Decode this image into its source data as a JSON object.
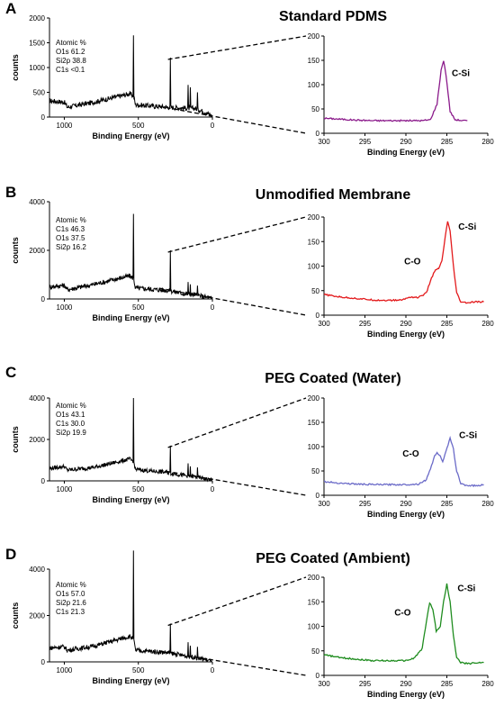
{
  "chart_data": [
    {
      "panel": "A",
      "title": "Standard PDMS",
      "type": "line",
      "survey": {
        "xlabel": "Binding Energy (eV)",
        "ylabel": "counts",
        "xlim": [
          1100,
          0
        ],
        "ylim": [
          0,
          2000
        ],
        "xticks": [
          1000,
          500,
          0
        ],
        "yticks": [
          0,
          500,
          1000,
          1500,
          2000
        ],
        "annotation": [
          "Atomic %",
          "O1s 61.2",
          "Si2p 38.8",
          "C1s <0.1"
        ],
        "baseline": [
          [
            1100,
            330
          ],
          [
            1000,
            300
          ],
          [
            980,
            200
          ],
          [
            800,
            300
          ],
          [
            560,
            470
          ],
          [
            532,
            430
          ],
          [
            520,
            250
          ],
          [
            300,
            200
          ],
          [
            180,
            180
          ],
          [
            120,
            180
          ],
          [
            50,
            100
          ],
          [
            0,
            20
          ]
        ],
        "peaks": [
          [
            532,
            1650
          ],
          [
            285,
            1200
          ],
          [
            165,
            650
          ],
          [
            150,
            600
          ],
          [
            102,
            500
          ]
        ]
      },
      "inset": {
        "xlabel": "Binding Energy (eV)",
        "xlim": [
          300,
          280
        ],
        "ylim": [
          0,
          200
        ],
        "xticks": [
          300,
          295,
          290,
          285,
          280
        ],
        "yticks": [
          0,
          50,
          100,
          150,
          200
        ],
        "color": "#8B1A8B",
        "points": [
          [
            300,
            31
          ],
          [
            298,
            29
          ],
          [
            296,
            27
          ],
          [
            294,
            26
          ],
          [
            292,
            26
          ],
          [
            290,
            26
          ],
          [
            288,
            26
          ],
          [
            287,
            28
          ],
          [
            286.2,
            60
          ],
          [
            285.7,
            130
          ],
          [
            285.4,
            150
          ],
          [
            285.1,
            120
          ],
          [
            284.6,
            45
          ],
          [
            284.0,
            28
          ],
          [
            283,
            26
          ],
          [
            282.5,
            26
          ]
        ],
        "peak_labels": [
          {
            "text": "C-Si",
            "x": 283.3,
            "y": 118
          }
        ]
      }
    },
    {
      "panel": "B",
      "title": "Unmodified Membrane",
      "type": "line",
      "survey": {
        "xlabel": "Binding Energy (eV)",
        "ylabel": "counts",
        "xlim": [
          1100,
          0
        ],
        "ylim": [
          0,
          4000
        ],
        "xticks": [
          1000,
          500,
          0
        ],
        "yticks": [
          0,
          2000,
          4000
        ],
        "annotation": [
          "Atomic %",
          "C1s 46.3",
          "O1s 37.5",
          "Si2p 16.2"
        ],
        "baseline": [
          [
            1100,
            500
          ],
          [
            1000,
            560
          ],
          [
            980,
            380
          ],
          [
            800,
            600
          ],
          [
            560,
            950
          ],
          [
            532,
            850
          ],
          [
            520,
            450
          ],
          [
            300,
            350
          ],
          [
            180,
            200
          ],
          [
            120,
            180
          ],
          [
            50,
            80
          ],
          [
            0,
            20
          ]
        ],
        "peaks": [
          [
            532,
            3500
          ],
          [
            285,
            2000
          ],
          [
            165,
            700
          ],
          [
            150,
            600
          ],
          [
            102,
            550
          ]
        ]
      },
      "inset": {
        "xlabel": "Binding Energy (eV)",
        "xlim": [
          300,
          280
        ],
        "ylim": [
          0,
          200
        ],
        "xticks": [
          300,
          295,
          290,
          285,
          280
        ],
        "yticks": [
          0,
          50,
          100,
          150,
          200
        ],
        "color": "#E31A1C",
        "points": [
          [
            300,
            42
          ],
          [
            298,
            37
          ],
          [
            296,
            34
          ],
          [
            294,
            31
          ],
          [
            292,
            30
          ],
          [
            290.5,
            31
          ],
          [
            289.5,
            37
          ],
          [
            288.5,
            36
          ],
          [
            287.5,
            45
          ],
          [
            287,
            70
          ],
          [
            286.5,
            90
          ],
          [
            286,
            95
          ],
          [
            285.6,
            110
          ],
          [
            285.2,
            160
          ],
          [
            284.9,
            190
          ],
          [
            284.6,
            170
          ],
          [
            284.2,
            100
          ],
          [
            283.8,
            45
          ],
          [
            283.3,
            27
          ],
          [
            282.5,
            25
          ],
          [
            281.5,
            27
          ],
          [
            280.5,
            27
          ]
        ],
        "peak_labels": [
          {
            "text": "C-O",
            "x": 289.2,
            "y": 104
          },
          {
            "text": "C-Si",
            "x": 282.5,
            "y": 174
          }
        ]
      }
    },
    {
      "panel": "C",
      "title": "PEG Coated (Water)",
      "type": "line",
      "survey": {
        "xlabel": "Binding Energy (eV)",
        "ylabel": "counts",
        "xlim": [
          1100,
          0
        ],
        "ylim": [
          0,
          4000
        ],
        "xticks": [
          1000,
          500,
          0
        ],
        "yticks": [
          0,
          2000,
          4000
        ],
        "annotation": [
          "Atomic %",
          "O1s 43.1",
          "C1s 30.0",
          "Si2p 19.9"
        ],
        "baseline": [
          [
            1100,
            600
          ],
          [
            1000,
            700
          ],
          [
            980,
            520
          ],
          [
            800,
            650
          ],
          [
            560,
            1050
          ],
          [
            532,
            950
          ],
          [
            520,
            550
          ],
          [
            300,
            400
          ],
          [
            180,
            250
          ],
          [
            120,
            200
          ],
          [
            50,
            100
          ],
          [
            0,
            20
          ]
        ],
        "peaks": [
          [
            532,
            4000
          ],
          [
            285,
            1700
          ],
          [
            165,
            850
          ],
          [
            150,
            700
          ],
          [
            102,
            650
          ]
        ]
      },
      "inset": {
        "xlabel": "Binding Energy (eV)",
        "xlim": [
          300,
          280
        ],
        "ylim": [
          0,
          200
        ],
        "xticks": [
          300,
          295,
          290,
          285,
          280
        ],
        "yticks": [
          0,
          50,
          100,
          150,
          200
        ],
        "color": "#6B6BC8",
        "points": [
          [
            300,
            28
          ],
          [
            298,
            25
          ],
          [
            296,
            23
          ],
          [
            294,
            22
          ],
          [
            292,
            22
          ],
          [
            290,
            22
          ],
          [
            288.5,
            23
          ],
          [
            287.5,
            32
          ],
          [
            287,
            55
          ],
          [
            286.5,
            80
          ],
          [
            286.2,
            89
          ],
          [
            285.8,
            80
          ],
          [
            285.5,
            70
          ],
          [
            285.1,
            90
          ],
          [
            284.6,
            117
          ],
          [
            284.2,
            95
          ],
          [
            283.8,
            50
          ],
          [
            283.3,
            24
          ],
          [
            282.5,
            20
          ],
          [
            281,
            20
          ],
          [
            280.5,
            22
          ]
        ],
        "peak_labels": [
          {
            "text": "C-O",
            "x": 289.4,
            "y": 80
          },
          {
            "text": "C-Si",
            "x": 282.4,
            "y": 118
          }
        ]
      }
    },
    {
      "panel": "D",
      "title": "PEG Coated (Ambient)",
      "type": "line",
      "survey": {
        "xlabel": "Binding Energy (eV)",
        "ylabel": "counts",
        "xlim": [
          1100,
          0
        ],
        "ylim": [
          0,
          4000
        ],
        "xticks": [
          1000,
          500,
          0
        ],
        "yticks": [
          0,
          2000,
          4000
        ],
        "annotation": [
          "Atomic %",
          "O1s 57.0",
          "Si2p 21.6",
          "C1s 21.3"
        ],
        "baseline": [
          [
            1100,
            600
          ],
          [
            1000,
            650
          ],
          [
            980,
            500
          ],
          [
            800,
            680
          ],
          [
            560,
            1100
          ],
          [
            532,
            1000
          ],
          [
            520,
            500
          ],
          [
            300,
            400
          ],
          [
            180,
            250
          ],
          [
            120,
            200
          ],
          [
            50,
            100
          ],
          [
            0,
            20
          ]
        ],
        "peaks": [
          [
            532,
            4800
          ],
          [
            285,
            1650
          ],
          [
            165,
            850
          ],
          [
            150,
            700
          ],
          [
            102,
            650
          ]
        ]
      },
      "inset": {
        "xlabel": "Binding Energy (eV)",
        "xlim": [
          300,
          280
        ],
        "ylim": [
          0,
          200
        ],
        "xticks": [
          300,
          295,
          290,
          285,
          280
        ],
        "yticks": [
          0,
          50,
          100,
          150,
          200
        ],
        "color": "#1E8C1E",
        "points": [
          [
            300,
            42
          ],
          [
            298,
            36
          ],
          [
            296,
            33
          ],
          [
            294,
            30
          ],
          [
            292,
            30
          ],
          [
            290,
            30
          ],
          [
            289,
            35
          ],
          [
            288,
            55
          ],
          [
            287.5,
            110
          ],
          [
            287.1,
            148
          ],
          [
            286.7,
            135
          ],
          [
            286.3,
            90
          ],
          [
            285.8,
            100
          ],
          [
            285.4,
            150
          ],
          [
            285.0,
            186
          ],
          [
            284.6,
            150
          ],
          [
            284.2,
            80
          ],
          [
            283.8,
            36
          ],
          [
            283.3,
            26
          ],
          [
            282.5,
            24
          ],
          [
            281,
            26
          ],
          [
            280.5,
            26
          ]
        ],
        "peak_labels": [
          {
            "text": "C-O",
            "x": 290.4,
            "y": 122
          },
          {
            "text": "C-Si",
            "x": 282.6,
            "y": 172
          }
        ]
      }
    }
  ]
}
